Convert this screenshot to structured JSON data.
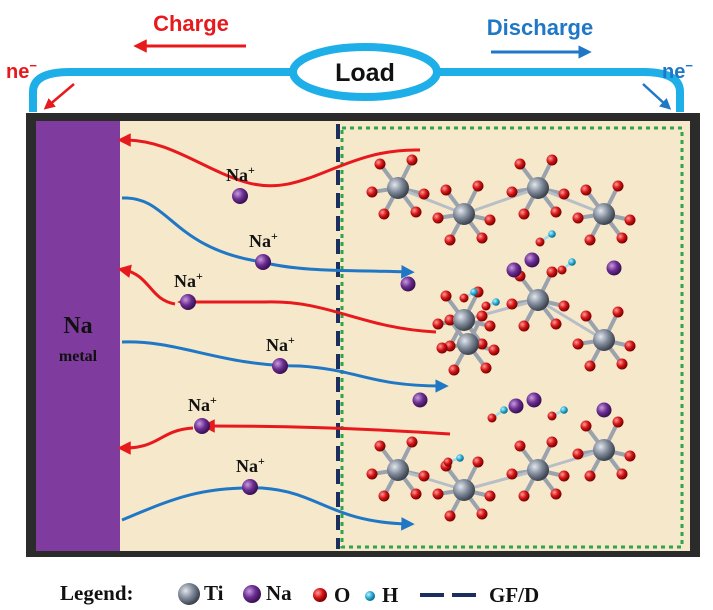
{
  "header": {
    "charge_label": "Charge",
    "discharge_label": "Discharge",
    "load_label": "Load",
    "electron_left": "ne",
    "electron_right": "ne",
    "electron_sup": "−"
  },
  "anode": {
    "title": "Na",
    "subtitle": "metal"
  },
  "ions": {
    "label": "Na",
    "charge": "+"
  },
  "legend": {
    "title": "Legend:",
    "items": [
      {
        "icon": "ti-atom-icon",
        "label": "Ti",
        "color": "#7d8796"
      },
      {
        "icon": "na-atom-icon",
        "label": "Na",
        "color": "#6a2d8f"
      },
      {
        "icon": "o-atom-icon",
        "label": "O",
        "color": "#d41414"
      },
      {
        "icon": "h-atom-icon",
        "label": "H",
        "color": "#25a8cf"
      },
      {
        "icon": "separator-dash-icon",
        "label": "GF/D",
        "color": "#1b2f5e"
      }
    ]
  },
  "colors": {
    "charge": "#e8191d",
    "discharge": "#1f77c6",
    "circuit": "#1eaee8",
    "anode": "#7f3b9e",
    "electrolyte": "#f8ecd2",
    "cathode_border": "#2fa44a",
    "separator": "#1b2f5e"
  }
}
